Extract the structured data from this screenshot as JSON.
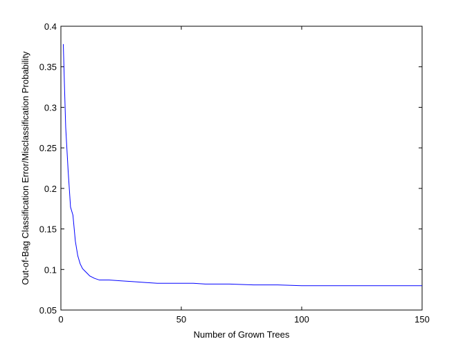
{
  "chart_data": {
    "type": "line",
    "title": "",
    "xlabel": "Number of Grown Trees",
    "ylabel": "Out-of-Bag Classification Error/Misclassification Probability",
    "xlim": [
      0,
      150
    ],
    "ylim": [
      0.05,
      0.4
    ],
    "xticks": [
      0,
      50,
      100,
      150
    ],
    "xtick_labels": [
      "0",
      "50",
      "100",
      "150"
    ],
    "yticks": [
      0.05,
      0.1,
      0.15,
      0.2,
      0.25,
      0.3,
      0.35,
      0.4
    ],
    "ytick_labels": [
      "0.05",
      "0.1",
      "0.15",
      "0.2",
      "0.25",
      "0.3",
      "0.35",
      "0.4"
    ],
    "grid": false,
    "legend": "none",
    "line_color": "#0000ff",
    "series": [
      {
        "x": [
          1,
          1.5,
          2,
          3,
          4,
          5,
          6,
          7,
          8,
          9,
          10,
          12,
          14,
          16,
          18,
          20,
          25,
          30,
          35,
          40,
          45,
          50,
          55,
          60,
          70,
          80,
          90,
          100,
          110,
          120,
          130,
          140,
          150
        ],
        "values": [
          0.378,
          0.325,
          0.275,
          0.222,
          0.177,
          0.167,
          0.135,
          0.117,
          0.107,
          0.101,
          0.098,
          0.092,
          0.089,
          0.087,
          0.087,
          0.087,
          0.086,
          0.085,
          0.084,
          0.083,
          0.083,
          0.083,
          0.083,
          0.082,
          0.082,
          0.081,
          0.081,
          0.08,
          0.08,
          0.08,
          0.08,
          0.08,
          0.08
        ]
      }
    ]
  }
}
